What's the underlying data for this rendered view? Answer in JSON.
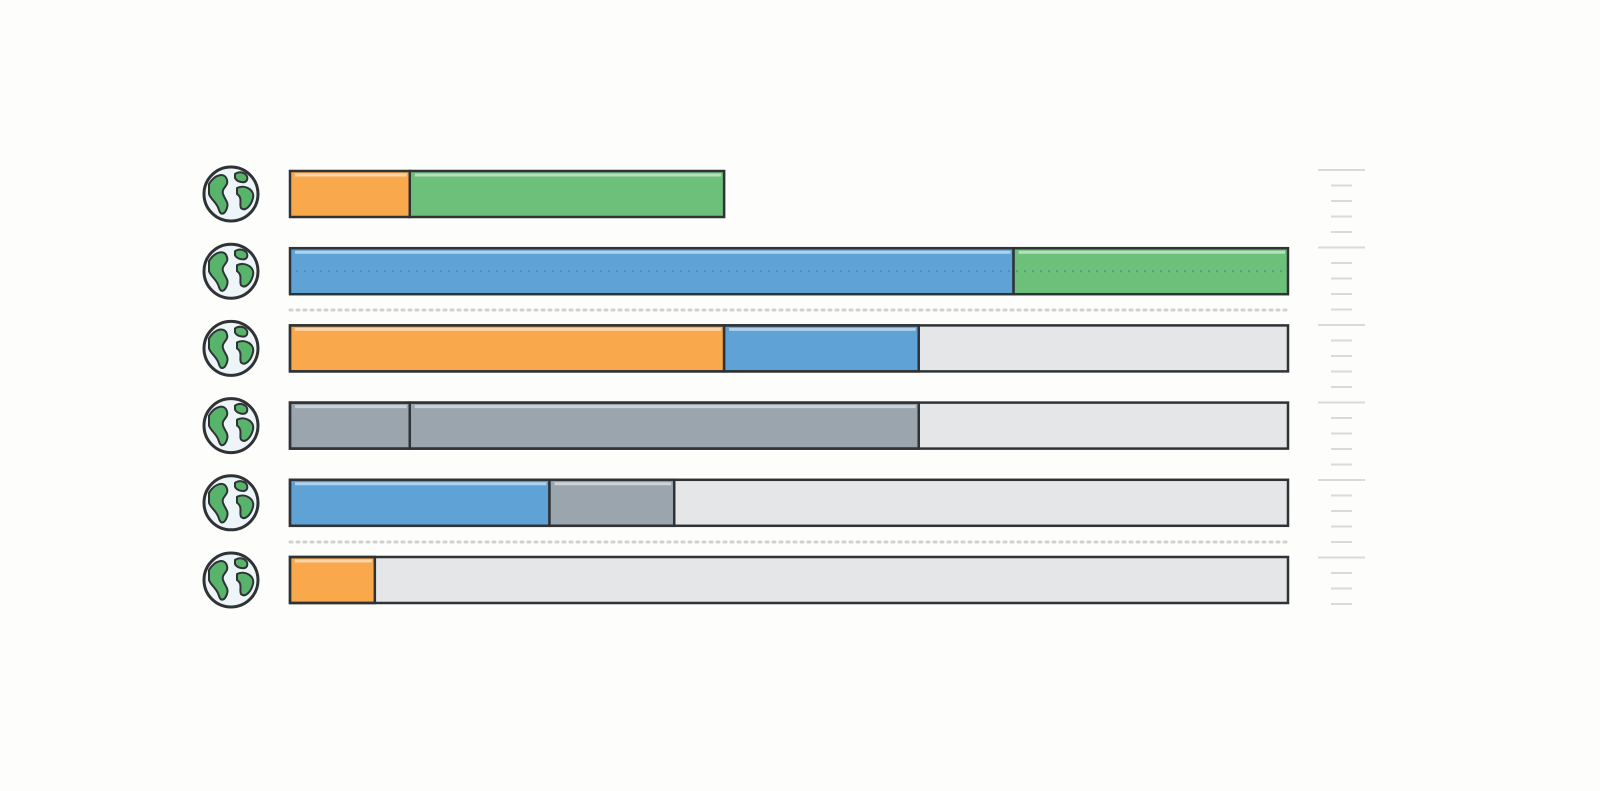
{
  "chart_data": {
    "type": "stacked-bar",
    "orientation": "horizontal",
    "xlim": [
      0,
      100
    ],
    "track_color": "#e5e6e7",
    "bars": [
      {
        "track": false,
        "segments": [
          {
            "value": 12,
            "color": "#f9a94b"
          },
          {
            "value": 31.5,
            "color": "#6cc07a"
          }
        ]
      },
      {
        "track": false,
        "segments": [
          {
            "value": 72.5,
            "color": "#5fa3d6"
          },
          {
            "value": 27.5,
            "color": "#6cc07a"
          }
        ]
      },
      {
        "track": true,
        "segments": [
          {
            "value": 43.5,
            "color": "#f9a94b"
          },
          {
            "value": 19.5,
            "color": "#5fa3d6"
          }
        ]
      },
      {
        "track": true,
        "segments": [
          {
            "value": 12,
            "color": "#9aa5ae"
          },
          {
            "value": 51,
            "color": "#9aa5ae"
          }
        ]
      },
      {
        "track": true,
        "segments": [
          {
            "value": 26,
            "color": "#5fa3d6"
          },
          {
            "value": 12.5,
            "color": "#9aa5ae"
          }
        ]
      },
      {
        "track": true,
        "segments": [
          {
            "value": 8.5,
            "color": "#f9a94b"
          }
        ]
      }
    ]
  }
}
